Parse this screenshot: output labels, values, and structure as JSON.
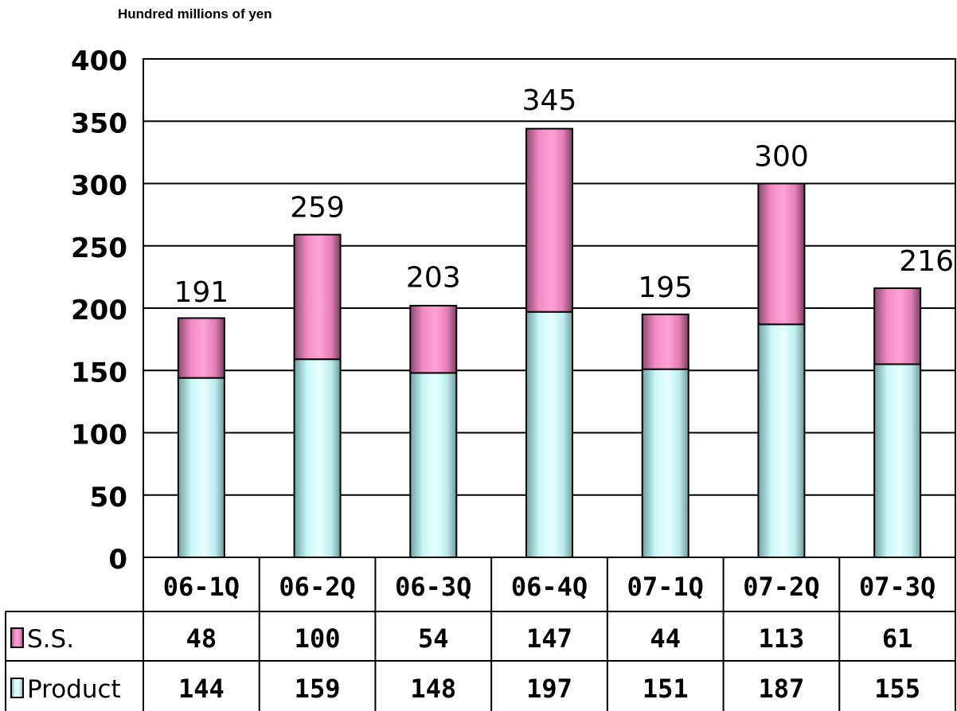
{
  "unit_label": "Hundred millions of yen",
  "chart_data": {
    "type": "bar",
    "stacked": true,
    "categories": [
      "06-1Q",
      "06-2Q",
      "06-3Q",
      "06-4Q",
      "07-1Q",
      "07-2Q",
      "07-3Q"
    ],
    "series": [
      {
        "name": "S.S.",
        "values": [
          48,
          100,
          54,
          147,
          44,
          113,
          61
        ],
        "color": "#f78fc8"
      },
      {
        "name": "Product",
        "values": [
          144,
          159,
          148,
          197,
          151,
          187,
          155
        ],
        "color": "#c8fafa"
      }
    ],
    "totals": [
      191,
      259,
      203,
      345,
      195,
      300,
      216
    ],
    "ylim": [
      0,
      400
    ],
    "yticks": [
      0,
      50,
      100,
      150,
      200,
      250,
      300,
      350,
      400
    ],
    "grid": true,
    "data_table": true
  }
}
